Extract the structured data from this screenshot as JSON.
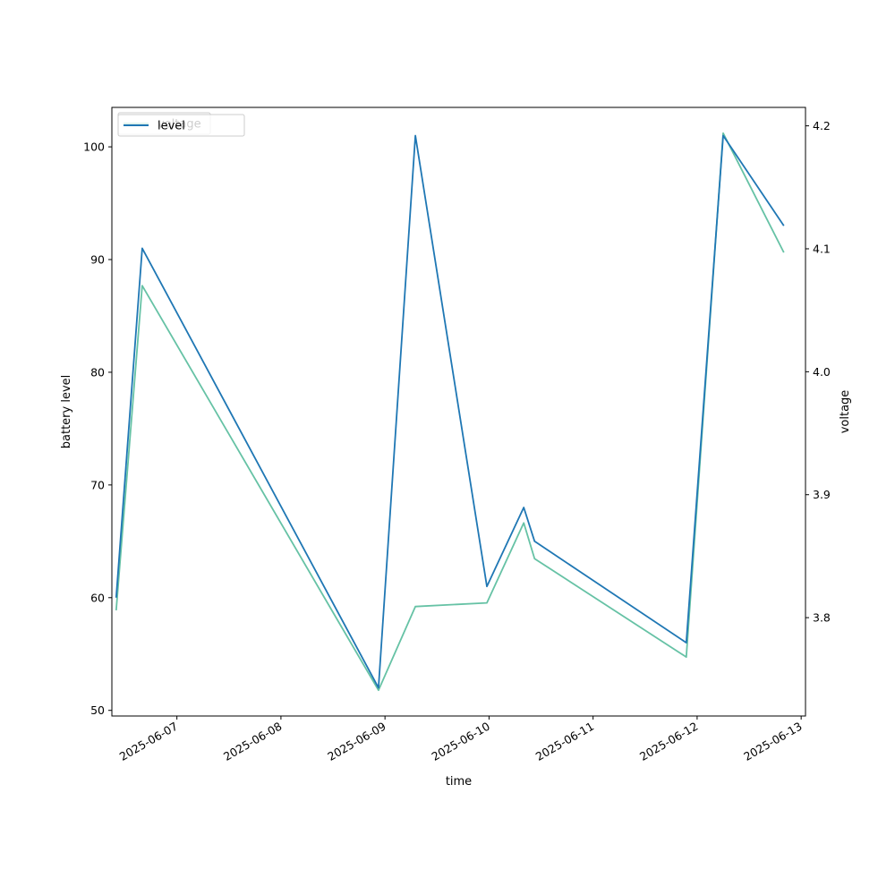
{
  "chart_data": {
    "type": "line",
    "xlabel": "time",
    "ylabel_left": "battery level",
    "ylabel_right": "voltage",
    "x_range": [
      "2025-06-06T09:00",
      "2025-06-13T01:00"
    ],
    "left_ylim": [
      49.5,
      103.5
    ],
    "right_ylim": [
      3.72,
      4.215
    ],
    "x_ticks": [
      "2025-06-07",
      "2025-06-08",
      "2025-06-09",
      "2025-06-10",
      "2025-06-11",
      "2025-06-12",
      "2025-06-13"
    ],
    "left_ticks": [
      50,
      60,
      70,
      80,
      90,
      100
    ],
    "right_ticks": [
      3.8,
      3.9,
      4.0,
      4.1,
      4.2
    ],
    "legend": {
      "placement": "upper-left",
      "entries": [
        "voltage",
        "level"
      ]
    },
    "series": [
      {
        "name": "level",
        "axis": "left",
        "color": "#1f77b4",
        "points": [
          [
            "2025-06-06T10:00",
            60
          ],
          [
            "2025-06-06T16:00",
            91
          ],
          [
            "2025-06-08T22:30",
            52
          ],
          [
            "2025-06-09T07:00",
            101
          ],
          [
            "2025-06-09T23:30",
            61
          ],
          [
            "2025-06-10T08:00",
            68
          ],
          [
            "2025-06-10T10:30",
            65
          ],
          [
            "2025-06-11T21:30",
            56
          ],
          [
            "2025-06-12T06:00",
            101
          ],
          [
            "2025-06-12T20:00",
            93
          ]
        ]
      },
      {
        "name": "voltage",
        "axis": "right",
        "color": "#66c2a5",
        "points": [
          [
            "2025-06-06T10:00",
            3.806
          ],
          [
            "2025-06-06T16:00",
            4.07
          ],
          [
            "2025-06-08T22:30",
            3.741
          ],
          [
            "2025-06-09T07:00",
            3.809
          ],
          [
            "2025-06-09T23:30",
            3.812
          ],
          [
            "2025-06-10T08:00",
            3.877
          ],
          [
            "2025-06-10T10:30",
            3.848
          ],
          [
            "2025-06-11T21:30",
            3.768
          ],
          [
            "2025-06-12T06:00",
            4.194
          ],
          [
            "2025-06-12T20:00",
            4.097
          ]
        ]
      }
    ]
  }
}
